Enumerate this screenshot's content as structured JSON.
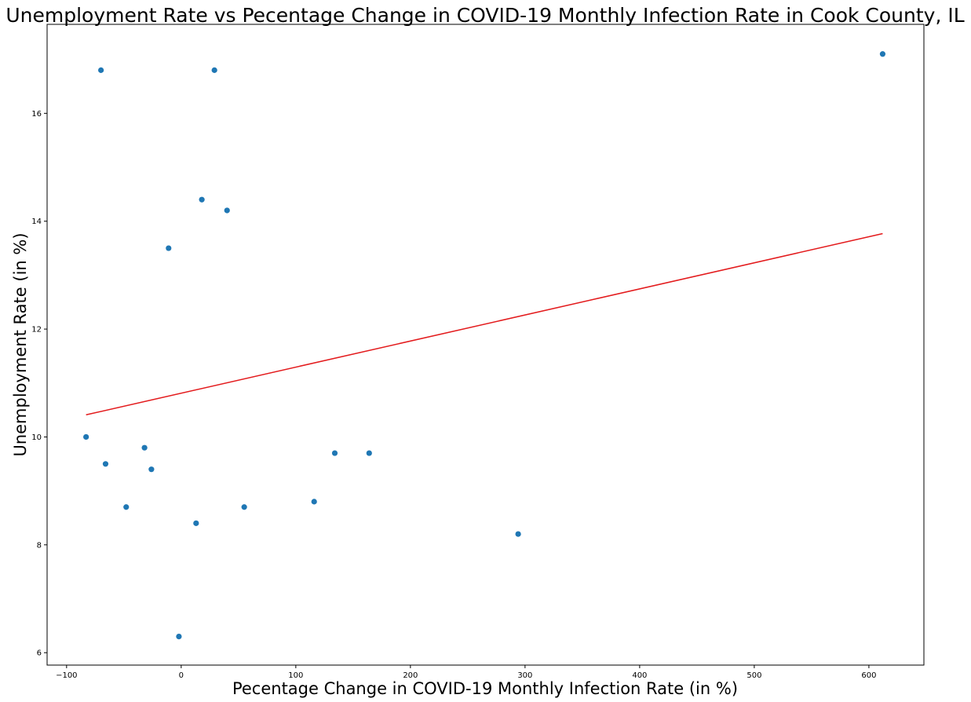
{
  "chart_data": {
    "type": "scatter",
    "title": "Unemployment Rate vs Pecentage Change in COVID-19 Monthly Infection Rate in Cook County, IL",
    "xlabel": "Pecentage Change in COVID-19 Monthly Infection Rate (in %)",
    "ylabel": "Unemployment Rate (in %)",
    "xlim": [
      -117,
      648
    ],
    "ylim": [
      5.77,
      17.65
    ],
    "xticks": [
      "−100",
      "0",
      "100",
      "200",
      "300",
      "400",
      "500",
      "600"
    ],
    "yticks": [
      "6",
      "8",
      "10",
      "12",
      "14",
      "16"
    ],
    "grid": false,
    "colors": {
      "points": "#1f77b4",
      "fit_line": "#e31a1c"
    },
    "points": [
      {
        "x": -83,
        "y": 10.0
      },
      {
        "x": -70,
        "y": 16.8
      },
      {
        "x": -66,
        "y": 9.5
      },
      {
        "x": -48,
        "y": 8.7
      },
      {
        "x": -32,
        "y": 9.8
      },
      {
        "x": -26,
        "y": 9.4
      },
      {
        "x": -11,
        "y": 13.5
      },
      {
        "x": -2,
        "y": 6.3
      },
      {
        "x": 13,
        "y": 8.4
      },
      {
        "x": 18,
        "y": 14.4
      },
      {
        "x": 29,
        "y": 16.8
      },
      {
        "x": 40,
        "y": 14.2
      },
      {
        "x": 55,
        "y": 8.7
      },
      {
        "x": 116,
        "y": 8.8
      },
      {
        "x": 134,
        "y": 9.7
      },
      {
        "x": 164,
        "y": 9.7
      },
      {
        "x": 294,
        "y": 8.2
      },
      {
        "x": 612,
        "y": 17.1
      }
    ],
    "fit_line": {
      "x": [
        -83,
        612
      ],
      "y": [
        10.41,
        13.77
      ]
    }
  }
}
